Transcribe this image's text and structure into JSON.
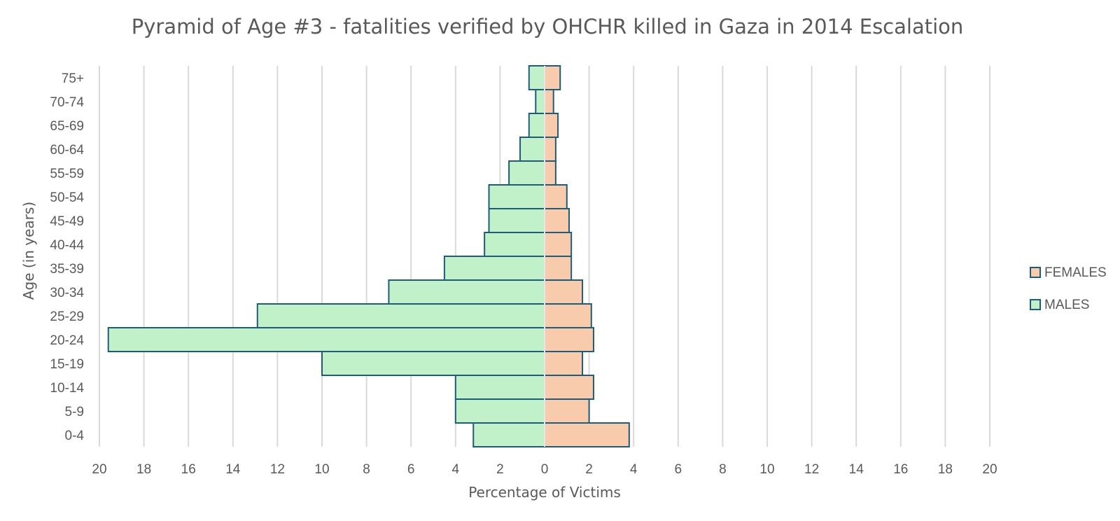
{
  "chart_data": {
    "type": "bar",
    "orientation": "horizontal-pyramid",
    "title": "Pyramid of Age #3 - fatalities verified by OHCHR killed in Gaza in 2014 Escalation",
    "xlabel": "Percentage of Victims",
    "ylabel": "Age (in years)",
    "xlim": [
      -20,
      20
    ],
    "x_ticks": [
      -20,
      -18,
      -16,
      -14,
      -12,
      -10,
      -8,
      -6,
      -4,
      -2,
      0,
      2,
      4,
      6,
      8,
      10,
      12,
      14,
      16,
      18,
      20
    ],
    "x_tick_labels": [
      "20",
      "18",
      "16",
      "14",
      "12",
      "10",
      "8",
      "6",
      "4",
      "2",
      "0",
      "2",
      "4",
      "6",
      "8",
      "10",
      "12",
      "14",
      "16",
      "18",
      "20"
    ],
    "categories": [
      "0-4",
      "5-9",
      "10-14",
      "15-19",
      "20-24",
      "25-29",
      "30-34",
      "35-39",
      "40-44",
      "45-49",
      "50-54",
      "55-59",
      "60-64",
      "65-69",
      "70-74",
      "75+"
    ],
    "series": [
      {
        "name": "FEMALES",
        "color": "#f8cbad",
        "values": [
          3.8,
          2.0,
          2.2,
          1.7,
          2.2,
          2.1,
          1.7,
          1.2,
          1.2,
          1.1,
          1.0,
          0.5,
          0.5,
          0.6,
          0.4,
          0.7
        ]
      },
      {
        "name": "MALES",
        "color": "#c1f1c8",
        "values": [
          3.2,
          4.0,
          4.0,
          10.0,
          19.6,
          12.9,
          7.0,
          4.5,
          2.7,
          2.5,
          2.5,
          1.6,
          1.1,
          0.7,
          0.4,
          0.7
        ]
      }
    ],
    "bar_stroke": "#1f5c7a",
    "grid_color": "#d9d9d9",
    "grid": true,
    "legend_position": "right"
  }
}
